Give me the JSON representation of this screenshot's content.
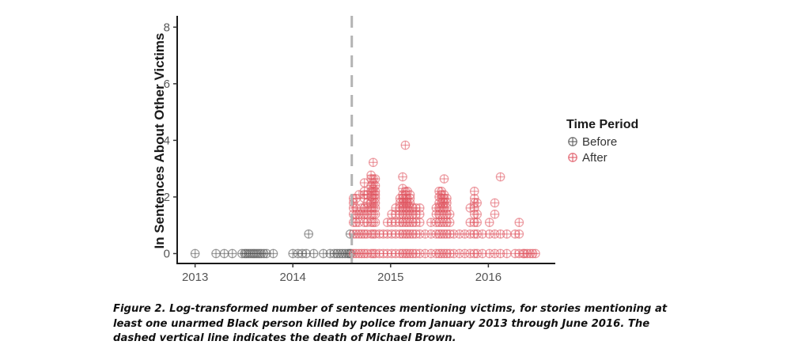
{
  "chart_data": {
    "type": "scatter",
    "title": "",
    "xlabel": "",
    "ylabel": "In Sentences About Other Victims",
    "x_ticks": [
      "2013",
      "2014",
      "2015",
      "2016"
    ],
    "y_ticks": [
      "0",
      "2",
      "4",
      "6",
      "8"
    ],
    "xlim": [
      "2012-11-01",
      "2016-09-01"
    ],
    "ylim": [
      -0.35,
      8.4
    ],
    "grid": false,
    "marker": "circle-plus, semi-transparent",
    "legend": {
      "title": "Time Period",
      "position": "right"
    },
    "vline": {
      "x": "2014-08-09",
      "style": "dashed",
      "color": "#b3b3b3"
    },
    "series": [
      {
        "name": "Before",
        "color": "#555555",
        "points": [
          [
            "2013-01-01",
            0
          ],
          [
            "2013-03-20",
            0
          ],
          [
            "2013-04-20",
            0
          ],
          [
            "2013-05-20",
            0
          ],
          [
            "2013-06-25",
            0
          ],
          [
            "2013-07-05",
            0
          ],
          [
            "2013-07-12",
            0
          ],
          [
            "2013-07-20",
            0
          ],
          [
            "2013-07-28",
            0
          ],
          [
            "2013-08-05",
            0
          ],
          [
            "2013-08-12",
            0
          ],
          [
            "2013-08-20",
            0
          ],
          [
            "2013-08-28",
            0
          ],
          [
            "2013-09-05",
            0
          ],
          [
            "2013-09-15",
            0
          ],
          [
            "2013-09-25",
            0
          ],
          [
            "2013-10-20",
            0
          ],
          [
            "2014-01-01",
            0
          ],
          [
            "2014-01-20",
            0
          ],
          [
            "2014-02-05",
            0
          ],
          [
            "2014-02-20",
            0
          ],
          [
            "2014-03-01",
            0.69
          ],
          [
            "2014-03-20",
            0
          ],
          [
            "2014-04-25",
            0
          ],
          [
            "2014-05-20",
            0
          ],
          [
            "2014-06-05",
            0
          ],
          [
            "2014-06-15",
            0
          ],
          [
            "2014-06-25",
            0
          ],
          [
            "2014-07-05",
            0
          ],
          [
            "2014-07-15",
            0
          ],
          [
            "2014-07-25",
            0
          ],
          [
            "2014-08-01",
            0
          ],
          [
            "2014-08-03",
            0.69
          ],
          [
            "2014-08-06",
            0
          ]
        ]
      },
      {
        "name": "After",
        "color": "#e05561",
        "points": [
          [
            "2014-08-15",
            0
          ],
          [
            "2014-08-15",
            0.69
          ],
          [
            "2014-08-15",
            1.1
          ],
          [
            "2014-08-15",
            1.39
          ],
          [
            "2014-08-15",
            1.61
          ],
          [
            "2014-08-15",
            1.79
          ],
          [
            "2014-08-15",
            1.95
          ],
          [
            "2014-08-25",
            0
          ],
          [
            "2014-08-25",
            0.69
          ],
          [
            "2014-08-25",
            1.1
          ],
          [
            "2014-08-25",
            1.39
          ],
          [
            "2014-08-25",
            1.61
          ],
          [
            "2014-08-25",
            1.95
          ],
          [
            "2014-09-05",
            0
          ],
          [
            "2014-09-05",
            0.69
          ],
          [
            "2014-09-05",
            1.1
          ],
          [
            "2014-09-05",
            1.39
          ],
          [
            "2014-09-05",
            2.08
          ],
          [
            "2014-09-15",
            0
          ],
          [
            "2014-09-15",
            0.69
          ],
          [
            "2014-09-15",
            1.39
          ],
          [
            "2014-09-15",
            1.61
          ],
          [
            "2014-09-25",
            0
          ],
          [
            "2014-09-25",
            0.69
          ],
          [
            "2014-09-25",
            1.1
          ],
          [
            "2014-09-25",
            1.39
          ],
          [
            "2014-09-25",
            1.61
          ],
          [
            "2014-09-25",
            1.95
          ],
          [
            "2014-09-25",
            2.08
          ],
          [
            "2014-09-25",
            2.2
          ],
          [
            "2014-09-25",
            2.5
          ],
          [
            "2014-10-05",
            0
          ],
          [
            "2014-10-05",
            0.69
          ],
          [
            "2014-10-05",
            1.1
          ],
          [
            "2014-10-05",
            1.39
          ],
          [
            "2014-10-05",
            1.61
          ],
          [
            "2014-10-05",
            1.79
          ],
          [
            "2014-10-05",
            2.08
          ],
          [
            "2014-10-20",
            0
          ],
          [
            "2014-10-20",
            0.69
          ],
          [
            "2014-10-20",
            1.1
          ],
          [
            "2014-10-20",
            1.39
          ],
          [
            "2014-10-20",
            1.61
          ],
          [
            "2014-10-20",
            1.79
          ],
          [
            "2014-10-20",
            2.0
          ],
          [
            "2014-10-20",
            2.2
          ],
          [
            "2014-10-20",
            2.4
          ],
          [
            "2014-10-20",
            2.64
          ],
          [
            "2014-10-20",
            2.77
          ],
          [
            "2014-10-28",
            0
          ],
          [
            "2014-10-28",
            0.69
          ],
          [
            "2014-10-28",
            1.1
          ],
          [
            "2014-10-28",
            1.39
          ],
          [
            "2014-10-28",
            1.61
          ],
          [
            "2014-10-28",
            1.79
          ],
          [
            "2014-10-28",
            1.95
          ],
          [
            "2014-10-28",
            2.08
          ],
          [
            "2014-10-28",
            2.2
          ],
          [
            "2014-10-28",
            2.3
          ],
          [
            "2014-10-28",
            2.48
          ],
          [
            "2014-10-28",
            2.64
          ],
          [
            "2014-10-28",
            3.22
          ],
          [
            "2014-11-05",
            0
          ],
          [
            "2014-11-05",
            0.69
          ],
          [
            "2014-11-05",
            1.1
          ],
          [
            "2014-11-05",
            1.39
          ],
          [
            "2014-11-05",
            1.61
          ],
          [
            "2014-11-05",
            1.79
          ],
          [
            "2014-11-05",
            1.95
          ],
          [
            "2014-11-05",
            2.08
          ],
          [
            "2014-11-05",
            2.2
          ],
          [
            "2014-11-05",
            2.4
          ],
          [
            "2014-11-05",
            2.64
          ],
          [
            "2014-11-20",
            0
          ],
          [
            "2014-11-20",
            0.69
          ],
          [
            "2014-12-05",
            0
          ],
          [
            "2014-12-05",
            0.69
          ],
          [
            "2014-12-20",
            0
          ],
          [
            "2014-12-20",
            0.69
          ],
          [
            "2014-12-20",
            1.1
          ],
          [
            "2015-01-05",
            0
          ],
          [
            "2015-01-05",
            0.69
          ],
          [
            "2015-01-05",
            1.1
          ],
          [
            "2015-01-05",
            1.39
          ],
          [
            "2015-01-20",
            0
          ],
          [
            "2015-01-20",
            0.69
          ],
          [
            "2015-01-20",
            1.1
          ],
          [
            "2015-01-20",
            1.39
          ],
          [
            "2015-01-20",
            1.61
          ],
          [
            "2015-02-05",
            0
          ],
          [
            "2015-02-05",
            0.69
          ],
          [
            "2015-02-05",
            1.1
          ],
          [
            "2015-02-05",
            1.39
          ],
          [
            "2015-02-05",
            1.61
          ],
          [
            "2015-02-05",
            1.79
          ],
          [
            "2015-02-05",
            1.95
          ],
          [
            "2015-02-15",
            0
          ],
          [
            "2015-02-15",
            0.69
          ],
          [
            "2015-02-15",
            1.1
          ],
          [
            "2015-02-15",
            1.39
          ],
          [
            "2015-02-15",
            1.61
          ],
          [
            "2015-02-15",
            1.79
          ],
          [
            "2015-02-15",
            1.95
          ],
          [
            "2015-02-15",
            2.08
          ],
          [
            "2015-02-15",
            2.3
          ],
          [
            "2015-02-15",
            2.71
          ],
          [
            "2015-02-25",
            0
          ],
          [
            "2015-02-25",
            0.69
          ],
          [
            "2015-02-25",
            1.1
          ],
          [
            "2015-02-25",
            1.39
          ],
          [
            "2015-02-25",
            1.61
          ],
          [
            "2015-02-25",
            1.79
          ],
          [
            "2015-02-25",
            1.95
          ],
          [
            "2015-02-25",
            2.08
          ],
          [
            "2015-02-25",
            2.2
          ],
          [
            "2015-02-25",
            3.83
          ],
          [
            "2015-03-05",
            0
          ],
          [
            "2015-03-05",
            0.69
          ],
          [
            "2015-03-05",
            1.1
          ],
          [
            "2015-03-05",
            1.39
          ],
          [
            "2015-03-05",
            1.61
          ],
          [
            "2015-03-05",
            1.79
          ],
          [
            "2015-03-05",
            1.95
          ],
          [
            "2015-03-05",
            2.2
          ],
          [
            "2015-03-15",
            0
          ],
          [
            "2015-03-15",
            0.69
          ],
          [
            "2015-03-15",
            1.1
          ],
          [
            "2015-03-15",
            1.39
          ],
          [
            "2015-03-15",
            1.61
          ],
          [
            "2015-03-15",
            1.79
          ],
          [
            "2015-03-15",
            1.95
          ],
          [
            "2015-03-15",
            2.08
          ],
          [
            "2015-03-25",
            0
          ],
          [
            "2015-03-25",
            0.69
          ],
          [
            "2015-03-25",
            1.1
          ],
          [
            "2015-03-25",
            1.39
          ],
          [
            "2015-03-25",
            1.61
          ],
          [
            "2015-04-05",
            0
          ],
          [
            "2015-04-05",
            0.69
          ],
          [
            "2015-04-05",
            1.1
          ],
          [
            "2015-04-05",
            1.39
          ],
          [
            "2015-04-05",
            1.61
          ],
          [
            "2015-04-20",
            0
          ],
          [
            "2015-04-20",
            0.69
          ],
          [
            "2015-04-20",
            1.1
          ],
          [
            "2015-04-20",
            1.39
          ],
          [
            "2015-04-20",
            1.61
          ],
          [
            "2015-05-10",
            0
          ],
          [
            "2015-05-10",
            0.69
          ],
          [
            "2015-06-01",
            0
          ],
          [
            "2015-06-01",
            0.69
          ],
          [
            "2015-06-01",
            1.1
          ],
          [
            "2015-06-20",
            0
          ],
          [
            "2015-06-20",
            0.69
          ],
          [
            "2015-06-20",
            1.1
          ],
          [
            "2015-06-20",
            1.39
          ],
          [
            "2015-06-20",
            1.61
          ],
          [
            "2015-07-01",
            0
          ],
          [
            "2015-07-01",
            0.69
          ],
          [
            "2015-07-01",
            1.1
          ],
          [
            "2015-07-01",
            1.39
          ],
          [
            "2015-07-01",
            1.61
          ],
          [
            "2015-07-01",
            1.79
          ],
          [
            "2015-07-01",
            2.0
          ],
          [
            "2015-07-01",
            2.2
          ],
          [
            "2015-07-10",
            0
          ],
          [
            "2015-07-10",
            0.69
          ],
          [
            "2015-07-10",
            1.1
          ],
          [
            "2015-07-10",
            1.39
          ],
          [
            "2015-07-10",
            1.61
          ],
          [
            "2015-07-10",
            1.79
          ],
          [
            "2015-07-10",
            1.95
          ],
          [
            "2015-07-10",
            2.08
          ],
          [
            "2015-07-10",
            2.2
          ],
          [
            "2015-07-20",
            0
          ],
          [
            "2015-07-20",
            0.69
          ],
          [
            "2015-07-20",
            1.1
          ],
          [
            "2015-07-20",
            1.39
          ],
          [
            "2015-07-20",
            1.61
          ],
          [
            "2015-07-20",
            1.79
          ],
          [
            "2015-07-20",
            1.95
          ],
          [
            "2015-07-20",
            2.08
          ],
          [
            "2015-07-20",
            2.64
          ],
          [
            "2015-07-30",
            0
          ],
          [
            "2015-07-30",
            0.69
          ],
          [
            "2015-07-30",
            1.1
          ],
          [
            "2015-07-30",
            1.39
          ],
          [
            "2015-07-30",
            1.61
          ],
          [
            "2015-07-30",
            1.79
          ],
          [
            "2015-07-30",
            1.95
          ],
          [
            "2015-08-10",
            0
          ],
          [
            "2015-08-10",
            0.69
          ],
          [
            "2015-08-10",
            1.1
          ],
          [
            "2015-08-10",
            1.39
          ],
          [
            "2015-08-25",
            0
          ],
          [
            "2015-08-25",
            0.69
          ],
          [
            "2015-09-15",
            0
          ],
          [
            "2015-09-15",
            0.69
          ],
          [
            "2015-10-05",
            0
          ],
          [
            "2015-10-05",
            0.69
          ],
          [
            "2015-10-25",
            0
          ],
          [
            "2015-10-25",
            0.69
          ],
          [
            "2015-10-25",
            1.1
          ],
          [
            "2015-10-25",
            1.61
          ],
          [
            "2015-11-10",
            0
          ],
          [
            "2015-11-10",
            0.69
          ],
          [
            "2015-11-10",
            1.1
          ],
          [
            "2015-11-10",
            1.39
          ],
          [
            "2015-11-10",
            1.61
          ],
          [
            "2015-11-10",
            1.79
          ],
          [
            "2015-11-10",
            1.95
          ],
          [
            "2015-11-10",
            2.2
          ],
          [
            "2015-11-20",
            0
          ],
          [
            "2015-11-20",
            0.69
          ],
          [
            "2015-11-20",
            1.1
          ],
          [
            "2015-11-20",
            1.39
          ],
          [
            "2015-11-20",
            1.79
          ],
          [
            "2015-12-10",
            0
          ],
          [
            "2015-12-10",
            0.69
          ],
          [
            "2016-01-05",
            0
          ],
          [
            "2016-01-05",
            0.69
          ],
          [
            "2016-01-05",
            1.1
          ],
          [
            "2016-01-25",
            0
          ],
          [
            "2016-01-25",
            0.69
          ],
          [
            "2016-01-25",
            1.39
          ],
          [
            "2016-01-25",
            1.79
          ],
          [
            "2016-02-15",
            0
          ],
          [
            "2016-02-15",
            0.69
          ],
          [
            "2016-02-15",
            2.71
          ],
          [
            "2016-03-10",
            0
          ],
          [
            "2016-03-10",
            0.69
          ],
          [
            "2016-04-10",
            0
          ],
          [
            "2016-04-10",
            0.69
          ],
          [
            "2016-04-25",
            0
          ],
          [
            "2016-04-25",
            0.69
          ],
          [
            "2016-04-25",
            1.1
          ],
          [
            "2016-05-10",
            0
          ],
          [
            "2016-05-15",
            0
          ],
          [
            "2016-05-25",
            0
          ],
          [
            "2016-06-05",
            0
          ],
          [
            "2016-06-15",
            0
          ],
          [
            "2016-06-25",
            0
          ]
        ]
      }
    ]
  },
  "caption": {
    "line1": "Figure 2. Log-transformed number of sentences mentioning victims, for stories mentioning at",
    "line2": "least one unarmed Black person killed by police from January 2013 through June 2016. The",
    "line3": "dashed vertical line indicates the death of Michael Brown."
  }
}
